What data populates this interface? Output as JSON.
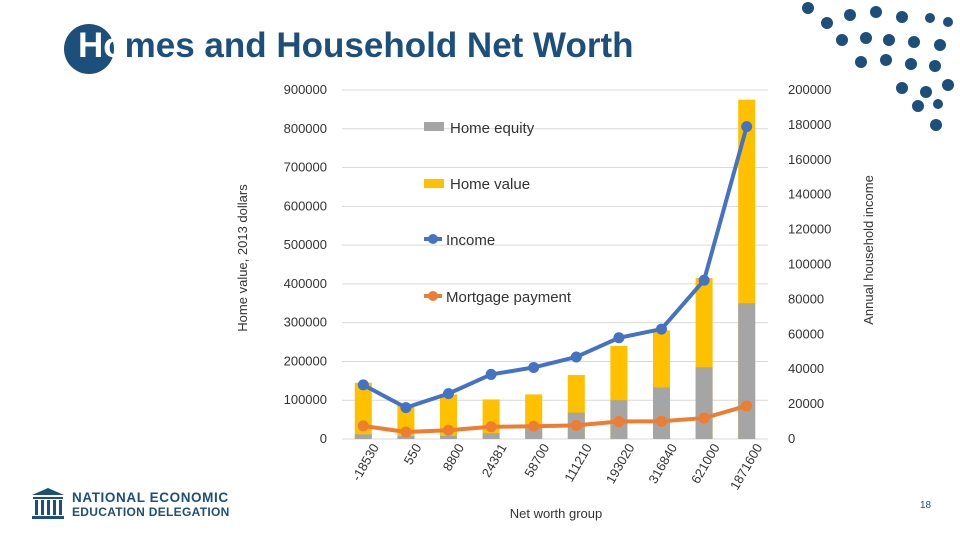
{
  "page": {
    "title": "Homes and Household Net Worth",
    "page_number": "18",
    "logo": {
      "line1": "NATIONAL ECONOMIC",
      "line2": "EDUCATION DELEGATION"
    }
  },
  "colors": {
    "home_equity": "#a5a5a5",
    "home_value": "#ffc000",
    "income": "#4472c4",
    "mortgage": "#ed7d31",
    "brand": "#1d4f7c",
    "grid": "#d9d9d9"
  },
  "chart_data": {
    "type": "bar",
    "xlabel": "Net worth group",
    "ylabel": "Home value, 2013 dollars",
    "y2label": "Annual household income",
    "ylim": [
      0,
      900000
    ],
    "y2lim": [
      0,
      200000
    ],
    "yticks": [
      "0",
      "100000",
      "200000",
      "300000",
      "400000",
      "500000",
      "600000",
      "700000",
      "800000",
      "900000"
    ],
    "y2ticks": [
      "0",
      "20000",
      "40000",
      "60000",
      "80000",
      "100000",
      "120000",
      "140000",
      "160000",
      "180000",
      "200000"
    ],
    "grid": true,
    "legend_position": "center-left inside plot",
    "categories": [
      "-18530",
      "550",
      "8800",
      "24381",
      "58700",
      "111210",
      "193020",
      "316840",
      "621000",
      "1871600"
    ],
    "series": [
      {
        "name": "Home equity",
        "type": "bar",
        "axis": "left",
        "values": [
          12000,
          8000,
          8000,
          15000,
          28000,
          68000,
          100000,
          133000,
          185000,
          350000
        ]
      },
      {
        "name": "Home value",
        "type": "bar",
        "axis": "left",
        "values": [
          145000,
          88000,
          115000,
          102000,
          115000,
          165000,
          240000,
          280000,
          415000,
          875000
        ]
      },
      {
        "name": "Income",
        "type": "line",
        "axis": "right",
        "values": [
          31000,
          18000,
          26000,
          37000,
          41000,
          47000,
          58000,
          63000,
          91000,
          179000
        ]
      },
      {
        "name": "Mortgage payment",
        "type": "line",
        "axis": "right",
        "values": [
          7500,
          4000,
          5000,
          7000,
          7300,
          7800,
          10000,
          10200,
          12000,
          19000
        ]
      }
    ]
  }
}
